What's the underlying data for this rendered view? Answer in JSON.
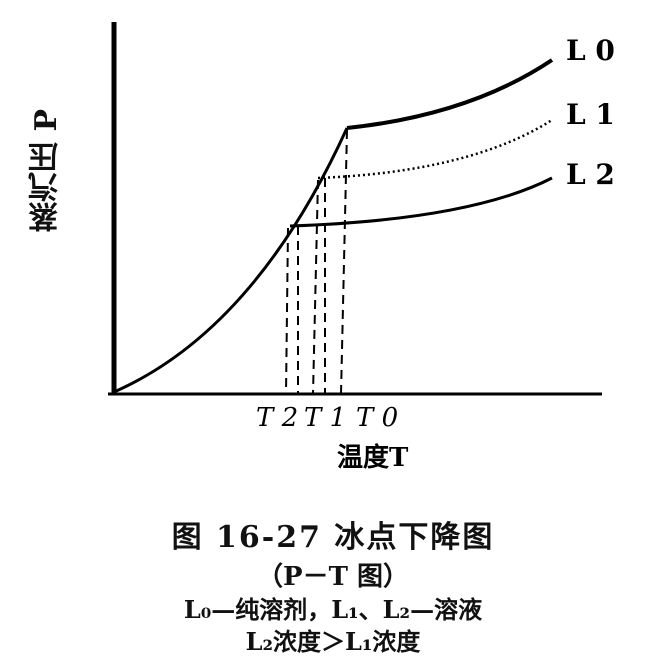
{
  "chart_data": {
    "type": "line",
    "ylabel": "蒸汽压 P",
    "xlabel": "温度T",
    "curve_labels": [
      "L 0",
      "L 1",
      "L 2"
    ],
    "tick_labels": [
      "T 2",
      "T 1",
      "T 0"
    ]
  },
  "caption": {
    "title": "图 16-27  冰点下降图",
    "subtitle": "（P－T 图）",
    "legend_line1": "L₀—纯溶剂，L₁、L₂—溶液",
    "legend_line2": "L₂浓度＞L₁浓度"
  }
}
